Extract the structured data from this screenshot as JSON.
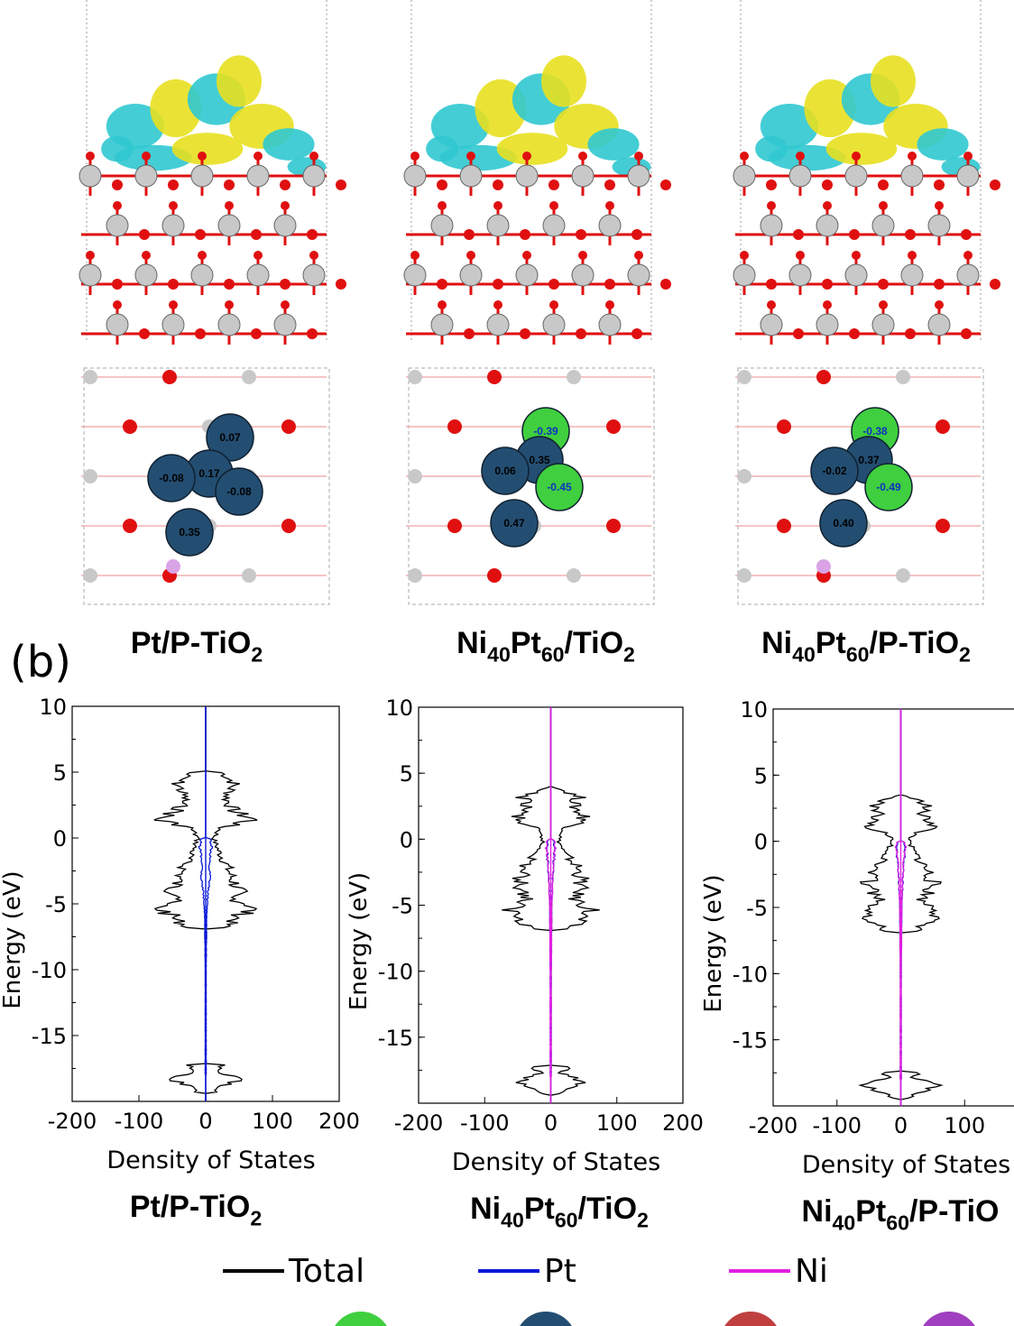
{
  "panel_b_label": "(b)",
  "structures": [
    {
      "name_parts": [
        "Pt/P-TiO",
        "2"
      ],
      "charges": [
        "0.07",
        "0.17",
        "-0.08",
        "-0.08",
        "0.35"
      ]
    },
    {
      "name_parts": [
        "Ni",
        "40",
        "Pt",
        "60",
        "/TiO",
        "2"
      ],
      "charges": [
        "-0.39",
        "0.35",
        "-0.45",
        "0.06",
        "0.47"
      ]
    },
    {
      "name_parts": [
        "Ni",
        "40",
        "Pt",
        "60",
        "/P-TiO",
        "2"
      ],
      "charges": [
        "-0.38",
        "0.37",
        "-0.49",
        "-0.02",
        "0.40"
      ]
    }
  ],
  "colors": {
    "total": "#000000",
    "pt": "#0a18d8",
    "ni": "#e020e0",
    "ti_atom": "#c8c8c8",
    "o_atom": "#e01010",
    "pt_atom": "#234e72",
    "ni_atom": "#3fcf3f",
    "p_atom": "#d9a3e6",
    "iso_yellow": "#e8e020",
    "iso_cyan": "#30c8d0"
  },
  "legend": [
    {
      "label": "Total",
      "color": "#000000"
    },
    {
      "label": "Pt",
      "color": "#0a18d8"
    },
    {
      "label": "Ni",
      "color": "#e020e0"
    }
  ],
  "chart_data": [
    {
      "type": "line",
      "title_parts": [
        "Pt/P-TiO",
        "2"
      ],
      "xlabel": "Density of States",
      "ylabel": "Energy (eV)",
      "xlim": [
        -200,
        200
      ],
      "ylim": [
        -20,
        10
      ],
      "xticks": [
        "-200",
        "-100",
        "0",
        "100",
        "200"
      ],
      "yticks": [
        "10",
        "5",
        "0",
        "-5",
        "-10",
        "-15"
      ],
      "grid": false,
      "series": [
        {
          "name": "Total",
          "color": "#000000",
          "envelope": [
            [
              5,
              30
            ],
            [
              4.2,
              55
            ],
            [
              3,
              40
            ],
            [
              2,
              55
            ],
            [
              1.4,
              95
            ],
            [
              0.8,
              30
            ],
            [
              0,
              15
            ],
            [
              -1,
              25
            ],
            [
              -2,
              40
            ],
            [
              -3,
              50
            ],
            [
              -4,
              65
            ],
            [
              -4.5,
              45
            ],
            [
              -5.2,
              95
            ],
            [
              -5.8,
              70
            ],
            [
              -6.4,
              50
            ],
            [
              -6.9,
              30
            ],
            [
              -10,
              3
            ],
            [
              -17.2,
              40
            ],
            [
              -17.6,
              20
            ],
            [
              -18.3,
              65
            ],
            [
              -18.8,
              35
            ],
            [
              -19.3,
              20
            ]
          ]
        },
        {
          "name": "Pt",
          "color": "#0a18d8",
          "envelope": [
            [
              0,
              8
            ],
            [
              -0.5,
              12
            ],
            [
              -1,
              10
            ],
            [
              -2,
              6
            ],
            [
              -3,
              8
            ],
            [
              -4,
              5
            ],
            [
              -5,
              3
            ],
            [
              -6,
              2
            ],
            [
              -10,
              1
            ],
            [
              -18,
              1
            ]
          ]
        }
      ]
    },
    {
      "type": "line",
      "title_parts": [
        "Ni",
        "40",
        "Pt",
        "60",
        "/TiO",
        "2"
      ],
      "xlabel": "Density of States",
      "ylabel": "Energy (eV)",
      "xlim": [
        -200,
        200
      ],
      "ylim": [
        -20,
        10
      ],
      "xticks": [
        "-200",
        "-100",
        "0",
        "100",
        "200"
      ],
      "yticks": [
        "10",
        "5",
        "0",
        "-5",
        "-10",
        "-15"
      ],
      "grid": false,
      "series": [
        {
          "name": "Total",
          "color": "#000000",
          "envelope": [
            [
              4,
              5
            ],
            [
              3.2,
              55
            ],
            [
              2.5,
              45
            ],
            [
              1.5,
              70
            ],
            [
              0.8,
              30
            ],
            [
              0,
              15
            ],
            [
              -1,
              25
            ],
            [
              -2,
              50
            ],
            [
              -3,
              60
            ],
            [
              -4,
              55
            ],
            [
              -4.5,
              45
            ],
            [
              -5.3,
              80
            ],
            [
              -5.9,
              60
            ],
            [
              -6.4,
              50
            ],
            [
              -6.8,
              30
            ],
            [
              -10,
              2
            ],
            [
              -17.2,
              40
            ],
            [
              -17.7,
              20
            ],
            [
              -18.4,
              65
            ],
            [
              -18.9,
              30
            ],
            [
              -19.3,
              15
            ]
          ]
        },
        {
          "name": "Pt",
          "color": "#0a18d8",
          "envelope": [
            [
              0,
              6
            ],
            [
              -1,
              8
            ],
            [
              -2,
              5
            ],
            [
              -3,
              4
            ],
            [
              -5,
              2
            ],
            [
              -10,
              1
            ],
            [
              -18,
              1
            ]
          ]
        },
        {
          "name": "Ni",
          "color": "#e020e0",
          "envelope": [
            [
              0,
              6
            ],
            [
              -0.5,
              9
            ],
            [
              -1,
              7
            ],
            [
              -2,
              5
            ],
            [
              -3,
              4
            ],
            [
              -5,
              2
            ],
            [
              -6,
              2
            ],
            [
              -10,
              1
            ],
            [
              -18,
              1
            ]
          ]
        }
      ]
    },
    {
      "type": "line",
      "title_parts": [
        "Ni",
        "40",
        "Pt",
        "60",
        "/P-TiO"
      ],
      "xlabel": "Density of States",
      "ylabel": "Energy (eV)",
      "xlim": [
        -200,
        200
      ],
      "ylim": [
        -20,
        10
      ],
      "xticks": [
        "-200",
        "-100",
        "0",
        "100"
      ],
      "yticks": [
        "10",
        "5",
        "0",
        "-5",
        "-10",
        "-15"
      ],
      "grid": false,
      "series": [
        {
          "name": "Total",
          "color": "#000000",
          "envelope": [
            [
              3.5,
              5
            ],
            [
              2.8,
              55
            ],
            [
              2,
              40
            ],
            [
              1.2,
              75
            ],
            [
              0.6,
              30
            ],
            [
              0,
              15
            ],
            [
              -1,
              30
            ],
            [
              -2,
              50
            ],
            [
              -3,
              65
            ],
            [
              -4,
              55
            ],
            [
              -4.5,
              40
            ],
            [
              -5.3,
              85
            ],
            [
              -5.9,
              60
            ],
            [
              -6.4,
              45
            ],
            [
              -6.9,
              30
            ],
            [
              -9.9,
              3
            ],
            [
              -17.4,
              40
            ],
            [
              -17.8,
              20
            ],
            [
              -18.5,
              70
            ],
            [
              -19,
              35
            ],
            [
              -19.4,
              15
            ]
          ]
        },
        {
          "name": "Pt",
          "color": "#0a18d8",
          "envelope": [
            [
              0,
              6
            ],
            [
              -1,
              8
            ],
            [
              -2,
              5
            ],
            [
              -3,
              4
            ],
            [
              -5,
              2
            ],
            [
              -10,
              1
            ],
            [
              -18,
              1
            ]
          ]
        },
        {
          "name": "Ni",
          "color": "#e020e0",
          "envelope": [
            [
              0,
              6
            ],
            [
              -0.5,
              9
            ],
            [
              -1,
              7
            ],
            [
              -2,
              5
            ],
            [
              -3,
              4
            ],
            [
              -5,
              2
            ],
            [
              -10,
              1
            ],
            [
              -18,
              1
            ]
          ]
        }
      ]
    }
  ]
}
